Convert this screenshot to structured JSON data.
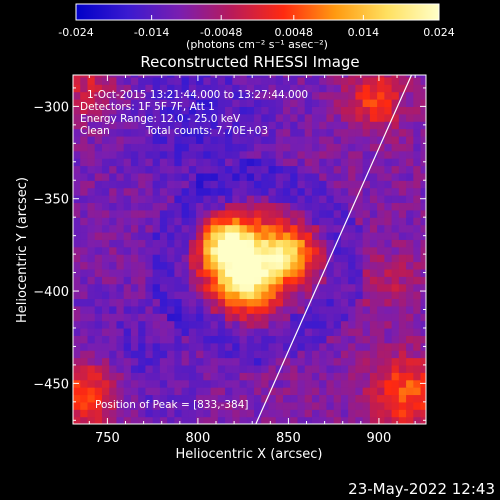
{
  "chart_data": {
    "type": "heatmap",
    "title": "Reconstructed RHESSI Image",
    "xlabel": "Heliocentric X (arcsec)",
    "ylabel": "Heliocentric Y (arcsec)",
    "xlim": [
      731,
      926
    ],
    "ylim": [
      -472,
      -283
    ],
    "x_ticks": [
      750,
      800,
      850,
      900
    ],
    "y_ticks": [
      -300,
      -350,
      -400,
      -450
    ],
    "colorbar": {
      "min": -0.024,
      "max": 0.024,
      "ticks": [
        "-0.024",
        "-0.014",
        "-0.0048",
        "0.0048",
        "0.014",
        "0.024"
      ],
      "unit_label": "(photons cm⁻² s⁻¹ asec⁻²)",
      "colors": [
        "#0000c8",
        "#3a1ad0",
        "#7a1eb0",
        "#b81a5a",
        "#ff2a10",
        "#ff9a10",
        "#ffe060",
        "#ffffc8"
      ]
    },
    "annotations": {
      "time_range": "1-Oct-2015 13:21:44.000 to 13:27:44.000",
      "detectors": "Detectors: 1F 5F 7F, Att 1",
      "energy_range": "Energy Range: 12.0 - 25.0 keV",
      "algorithm": "Clean",
      "total_counts": "Total counts: 7.70E+03",
      "peak_position": "Position of Peak = [833,-384]"
    },
    "peak": {
      "x": 833,
      "y": -384,
      "value": 0.024
    },
    "limb_line": {
      "x_start": 832,
      "y_start": -472,
      "x_end": 918,
      "y_end": -283
    },
    "grid": false
  },
  "footer": {
    "timestamp": "23-May-2022 12:43"
  }
}
